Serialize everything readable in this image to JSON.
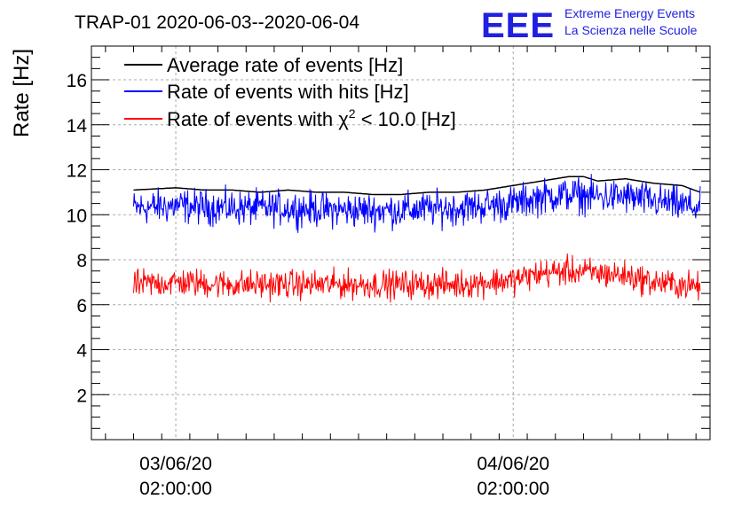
{
  "chart_data": {
    "type": "line",
    "title": "TRAP-01 2020-06-03--2020-06-04",
    "xlabel": "",
    "ylabel": "Rate [Hz]",
    "ylim": [
      0,
      17.5
    ],
    "yticks": [
      2,
      4,
      6,
      8,
      10,
      12,
      14,
      16
    ],
    "xticks": [
      {
        "date": "03/06/20",
        "time": "02:00:00",
        "hours": 0
      },
      {
        "date": "04/06/20",
        "time": "02:00:00",
        "hours": 24
      }
    ],
    "xlim_hours": [
      -6,
      38
    ],
    "grid": true,
    "legend_position": "top-left",
    "series": [
      {
        "name": "Average rate of events [Hz]",
        "color": "#000000",
        "style": "smooth",
        "x_hours": [
          -3.0,
          0,
          2,
          4,
          6,
          8,
          10,
          12,
          14,
          16,
          18,
          20,
          22,
          24,
          26,
          28,
          29,
          30,
          32,
          34,
          36,
          37.3
        ],
        "values": [
          11.1,
          11.2,
          11.1,
          11.1,
          11.0,
          11.1,
          11.0,
          11.0,
          10.9,
          10.9,
          11.0,
          11.0,
          11.1,
          11.3,
          11.5,
          11.7,
          11.7,
          11.5,
          11.6,
          11.4,
          11.3,
          11.0
        ]
      },
      {
        "name": "Rate of events with hits [Hz]",
        "color": "#0000ff",
        "style": "noisy",
        "x_hours": [
          -3.0,
          0,
          4,
          8,
          12,
          16,
          20,
          24,
          26,
          28,
          30,
          32,
          34,
          37.3
        ],
        "values": [
          10.3,
          10.4,
          10.3,
          10.3,
          10.2,
          10.2,
          10.3,
          10.5,
          10.8,
          10.9,
          10.8,
          10.8,
          10.6,
          10.3
        ],
        "noise": 0.55
      },
      {
        "name": "Rate of events with χ² < 10.0 [Hz]",
        "color": "#ff0000",
        "style": "noisy",
        "x_hours": [
          -3.0,
          0,
          4,
          8,
          12,
          16,
          20,
          24,
          26,
          28,
          30,
          32,
          34,
          37.3
        ],
        "values": [
          6.9,
          7.0,
          6.9,
          6.9,
          6.9,
          6.9,
          6.9,
          7.1,
          7.4,
          7.5,
          7.4,
          7.3,
          7.0,
          6.8
        ],
        "noise": 0.45
      }
    ]
  },
  "legend": {
    "line1": "Average rate of events [Hz]",
    "line2": "Rate of events with hits [Hz]",
    "line3_prefix": "Rate of events with ",
    "line3_chi": "χ",
    "line3_sup": "2",
    "line3_suffix": " < 10.0 [Hz]"
  },
  "logo": {
    "big": "EEE",
    "line1": "Extreme Energy Events",
    "line2": "La Scienza nelle Scuole",
    "color": "#2020e0"
  }
}
